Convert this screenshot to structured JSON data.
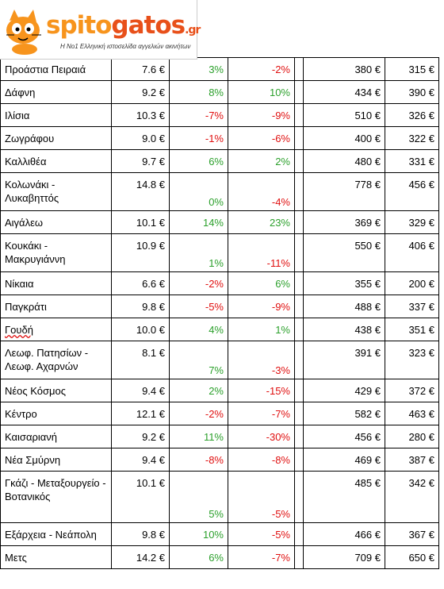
{
  "logo": {
    "brand_a": "spito",
    "brand_b": "gatos",
    "brand_suffix": ".gr",
    "tagline": "Η Νο1 Ελληνική ιστοσελίδα αγγελιών ακινήτων"
  },
  "colors": {
    "positive": "#2ca02c",
    "negative": "#e01010",
    "brand_orange": "#f7941d",
    "brand_red": "#e8501a"
  },
  "rows": [
    {
      "area": "Προάστια Πειραιά",
      "price": "7.6 €",
      "pct1": "3%",
      "pct2": "-2%",
      "p1": "380 €",
      "p2": "315 €"
    },
    {
      "area": "Δάφνη",
      "price": "9.2 €",
      "pct1": "8%",
      "pct2": "10%",
      "p1": "434 €",
      "p2": "390 €"
    },
    {
      "area": "Ιλίσια",
      "price": "10.3 €",
      "pct1": "-7%",
      "pct2": "-9%",
      "p1": "510 €",
      "p2": "326 €"
    },
    {
      "area": "Ζωγράφου",
      "price": "9.0 €",
      "pct1": "-1%",
      "pct2": "-6%",
      "p1": "400 €",
      "p2": "322 €"
    },
    {
      "area": "Καλλιθέα",
      "price": "9.7 €",
      "pct1": "6%",
      "pct2": "2%",
      "p1": "480 €",
      "p2": "331 €"
    },
    {
      "area": "Κολωνάκι - Λυκαβηττός",
      "price": "14.8 €",
      "pct1": "0%",
      "pct2": "-4%",
      "p1": "778 €",
      "p2": "456 €"
    },
    {
      "area": "Αιγάλεω",
      "price": "10.1 €",
      "pct1": "14%",
      "pct2": "23%",
      "p1": "369 €",
      "p2": "329 €"
    },
    {
      "area": "Κουκάκι - Μακρυγιάννη",
      "price": "10.9 €",
      "pct1": "1%",
      "pct2": "-11%",
      "p1": "550 €",
      "p2": "406 €"
    },
    {
      "area": "Νίκαια",
      "price": "6.6 €",
      "pct1": "-2%",
      "pct2": "6%",
      "p1": "355 €",
      "p2": "200 €"
    },
    {
      "area": "Παγκράτι",
      "price": "9.8 €",
      "pct1": "-5%",
      "pct2": "-9%",
      "p1": "488 €",
      "p2": "337 €"
    },
    {
      "area": "Γουδή",
      "price": "10.0 €",
      "pct1": "4%",
      "pct2": "1%",
      "p1": "438 €",
      "p2": "351 €"
    },
    {
      "area": "Λεωφ. Πατησίων - Λεωφ. Αχαρνών",
      "price": "8.1 €",
      "pct1": "7%",
      "pct2": "-3%",
      "p1": "391 €",
      "p2": "323 €"
    },
    {
      "area": "Νέος Κόσμος",
      "price": "9.4 €",
      "pct1": "2%",
      "pct2": "-15%",
      "p1": "429 €",
      "p2": "372 €"
    },
    {
      "area": "Κέντρο",
      "price": "12.1 €",
      "pct1": "-2%",
      "pct2": "-7%",
      "p1": "582 €",
      "p2": "463 €"
    },
    {
      "area": "Καισαριανή",
      "price": "9.2 €",
      "pct1": "11%",
      "pct2": "-30%",
      "p1": "456 €",
      "p2": "280 €"
    },
    {
      "area": "Νέα Σμύρνη",
      "price": "9.4 €",
      "pct1": "-8%",
      "pct2": "-8%",
      "p1": "469 €",
      "p2": "387 €"
    },
    {
      "area": "Γκάζι - Μεταξουργείο - Βοτανικός",
      "price": "10.1 €",
      "pct1": "5%",
      "pct2": "-5%",
      "p1": "485 €",
      "p2": "342 €"
    },
    {
      "area": "Εξάρχεια - Νεάπολη",
      "price": "9.8 €",
      "pct1": "10%",
      "pct2": "-5%",
      "p1": "466 €",
      "p2": "367 €"
    },
    {
      "area": "Μετς",
      "price": "14.2 €",
      "pct1": "6%",
      "pct2": "-7%",
      "p1": "709 €",
      "p2": "650 €"
    }
  ]
}
